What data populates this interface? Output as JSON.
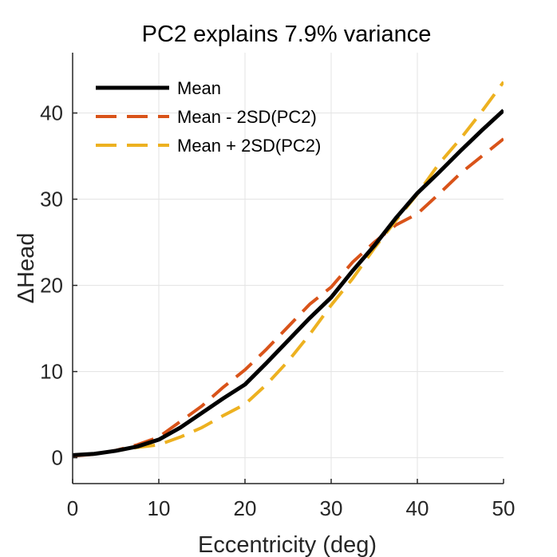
{
  "chart_data": {
    "type": "line",
    "title": "PC2 explains 7.9% variance",
    "xlabel": "Eccentricity (deg)",
    "ylabel": "ΔHead",
    "xlim": [
      0,
      50
    ],
    "ylim": [
      -3,
      47
    ],
    "xticks": [
      0,
      10,
      20,
      30,
      40,
      50
    ],
    "yticks": [
      0,
      10,
      20,
      30,
      40
    ],
    "grid": true,
    "legend_position": "top-left",
    "x": [
      0,
      2.5,
      5,
      7.5,
      10,
      12.5,
      15,
      17.5,
      20,
      22.5,
      25,
      27.5,
      30,
      32.5,
      35,
      37.5,
      40,
      42.5,
      45,
      47.5,
      50
    ],
    "series": [
      {
        "name": "Mean",
        "color": "#000000",
        "dash": "solid",
        "values": [
          0.3,
          0.45,
          0.8,
          1.3,
          2.1,
          3.5,
          5.2,
          6.9,
          8.5,
          11.0,
          13.6,
          16.2,
          18.6,
          21.7,
          24.6,
          27.8,
          30.7,
          33.1,
          35.6,
          38.0,
          40.3
        ]
      },
      {
        "name": "Mean - 2SD(PC2)",
        "color": "#D95319",
        "dash": "dashed",
        "values": [
          0.2,
          0.4,
          0.85,
          1.5,
          2.4,
          4.2,
          6.0,
          8.2,
          10.2,
          12.6,
          15.2,
          17.8,
          19.8,
          22.7,
          25.0,
          27.0,
          28.3,
          30.6,
          33.0,
          35.0,
          37.0
        ]
      },
      {
        "name": "Mean + 2SD(PC2)",
        "color": "#EDB120",
        "dash": "dashed",
        "values": [
          0.3,
          0.45,
          0.8,
          1.2,
          1.5,
          2.4,
          3.5,
          4.9,
          6.2,
          8.5,
          11.2,
          14.3,
          17.7,
          20.8,
          24.3,
          27.5,
          30.6,
          34.1,
          37.0,
          40.2,
          43.6
        ]
      }
    ]
  }
}
